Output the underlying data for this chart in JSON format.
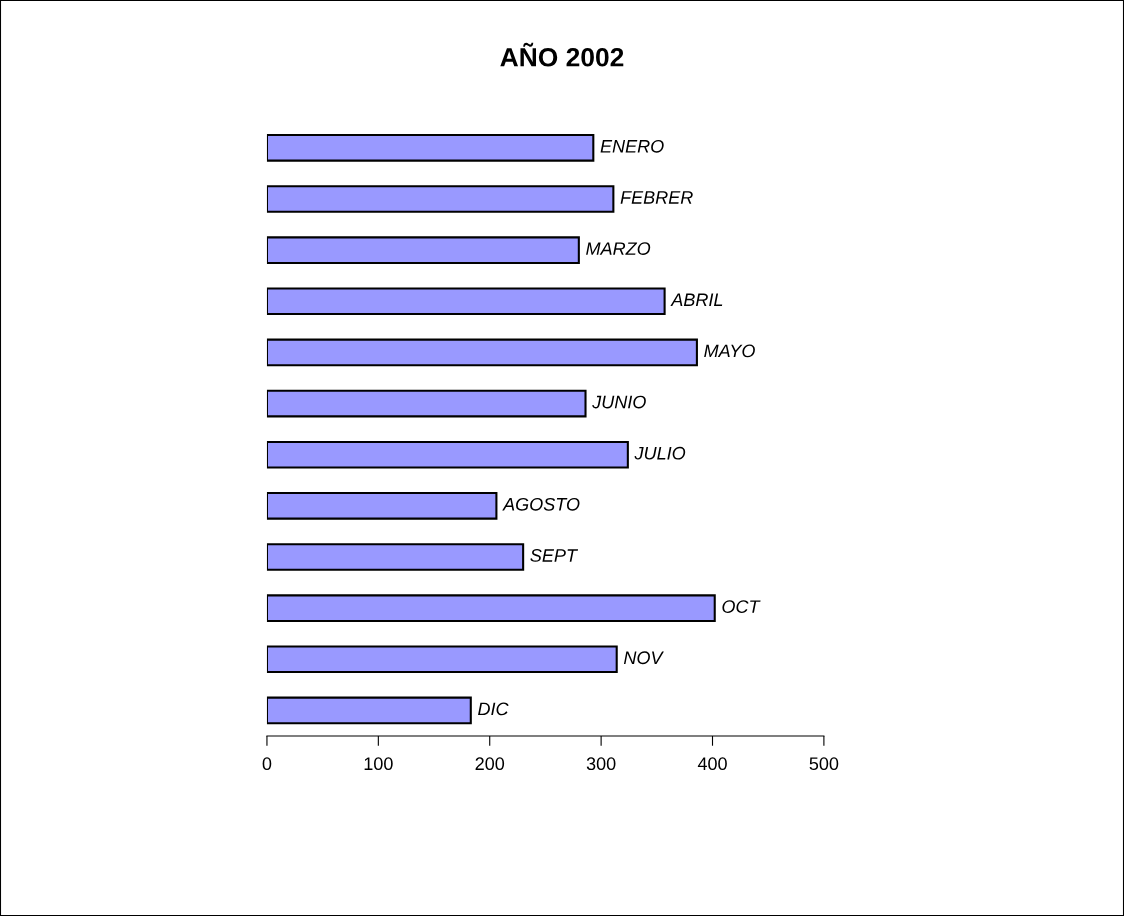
{
  "chart_data": {
    "type": "bar",
    "orientation": "horizontal",
    "title": "AÑO 2002",
    "categories": [
      "ENERO",
      "FEBRER",
      "MARZO",
      "ABRIL",
      "MAYO",
      "JUNIO",
      "JULIO",
      "AGOSTO",
      "SEPT",
      "OCT",
      "NOV",
      "DIC"
    ],
    "values": [
      293,
      311,
      280,
      357,
      386,
      286,
      324,
      206,
      230,
      402,
      314,
      183
    ],
    "color": "#9999ff",
    "xlim": [
      0,
      500
    ],
    "xticks": [
      0,
      100,
      200,
      300,
      400,
      500
    ],
    "grid": false
  }
}
